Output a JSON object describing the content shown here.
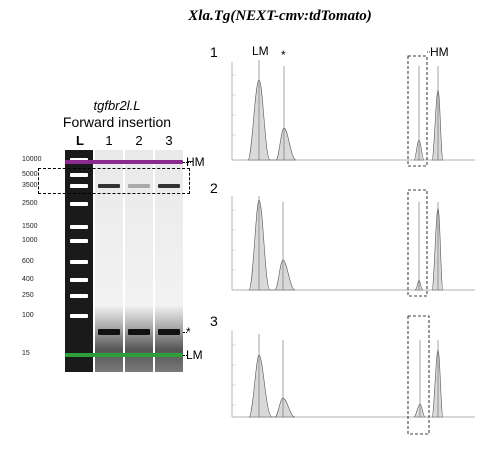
{
  "figure_title": "Xla.Tg(NEXT-cmv:tdTomato)",
  "gel": {
    "gene": "tgfbr2l.L",
    "subtitle": "Forward insertion",
    "lane_labels": [
      "L",
      "1",
      "2",
      "3"
    ],
    "ladder_sizes": [
      "10000",
      "5000",
      "3500",
      "2500",
      "1500",
      "1000",
      "600",
      "400",
      "250",
      "100",
      "15"
    ],
    "band_labels": {
      "hm": "HM",
      "star": "*",
      "lm": "LM"
    }
  },
  "electropherograms": {
    "panel_numbers": [
      "1",
      "2",
      "3"
    ],
    "peak_labels": {
      "lm": "LM",
      "star": "*",
      "hm": "HM"
    }
  },
  "colors": {
    "hm_band": "#8b2a8f",
    "lm_band": "#2e9e3a",
    "peak_fill": "#d9d9d9",
    "dashed_box": "#000000"
  }
}
